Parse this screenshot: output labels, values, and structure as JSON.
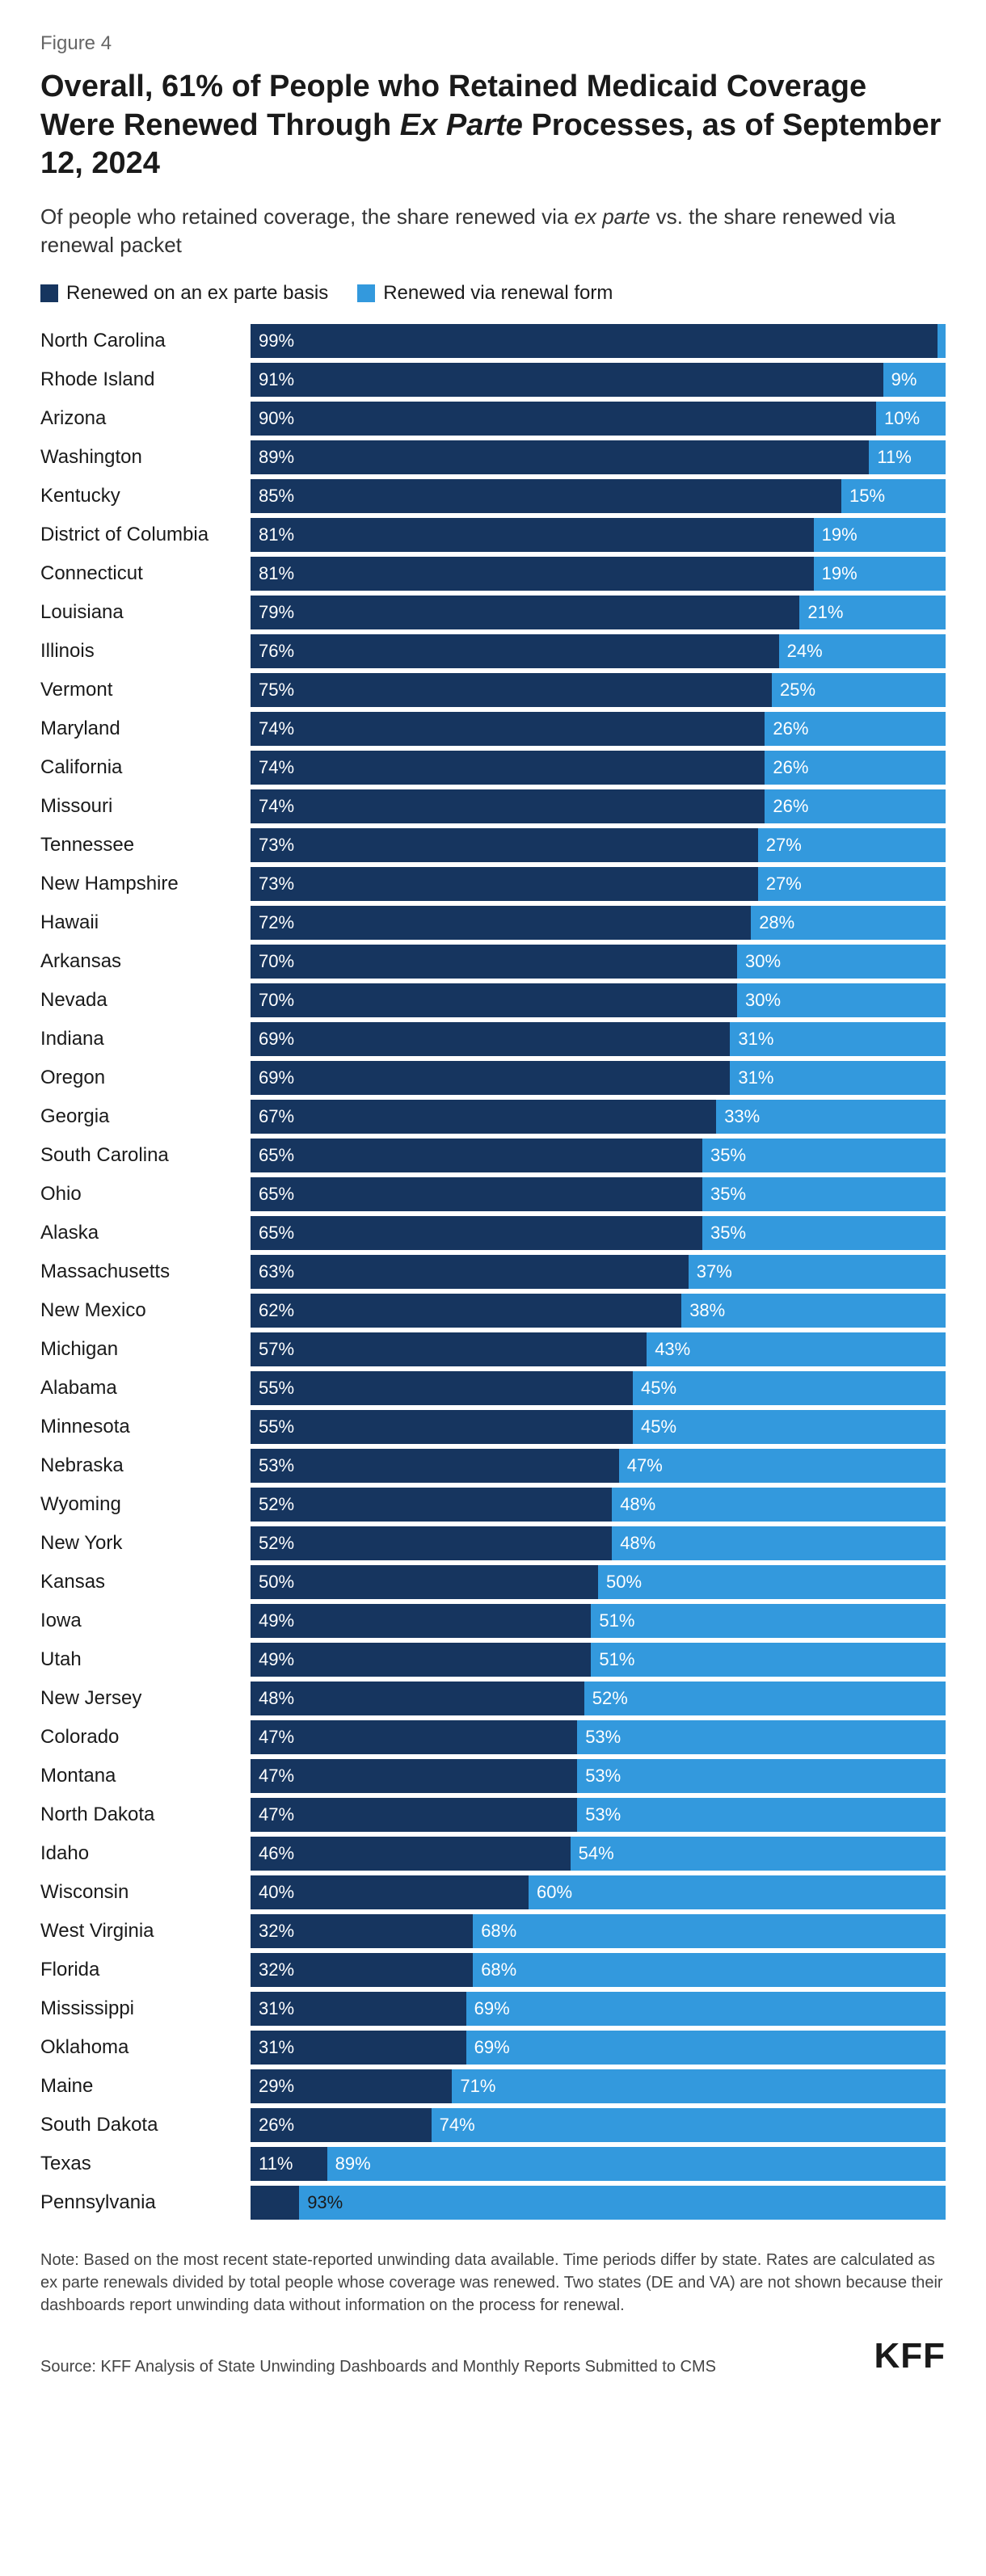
{
  "figure_label": "Figure 4",
  "title_pre": "Overall, 61% of People who Retained Medicaid Coverage Were Renewed Through ",
  "title_em": "Ex Parte",
  "title_post": " Processes, as of September 12, 2024",
  "subtitle_pre": "Of people who retained coverage, the share renewed via ",
  "subtitle_em": "ex parte",
  "subtitle_post": " vs. the share renewed via renewal packet",
  "legend": {
    "series1": {
      "label": "Renewed on an ex parte basis",
      "color": "#16355f"
    },
    "series2": {
      "label": "Renewed via renewal form",
      "color": "#3399dd"
    }
  },
  "chart": {
    "type": "stacked-bar-horizontal",
    "colors": {
      "s1": "#16355f",
      "s2": "#3399dd"
    },
    "text_color": "#ffffff",
    "rows": [
      {
        "state": "North Carolina",
        "s1": 99,
        "s2": 1,
        "l1": "99%",
        "l2": ""
      },
      {
        "state": "Rhode Island",
        "s1": 91,
        "s2": 9,
        "l1": "91%",
        "l2": "9%"
      },
      {
        "state": "Arizona",
        "s1": 90,
        "s2": 10,
        "l1": "90%",
        "l2": "10%"
      },
      {
        "state": "Washington",
        "s1": 89,
        "s2": 11,
        "l1": "89%",
        "l2": "11%"
      },
      {
        "state": "Kentucky",
        "s1": 85,
        "s2": 15,
        "l1": "85%",
        "l2": "15%"
      },
      {
        "state": "District of Columbia",
        "s1": 81,
        "s2": 19,
        "l1": "81%",
        "l2": "19%"
      },
      {
        "state": "Connecticut",
        "s1": 81,
        "s2": 19,
        "l1": "81%",
        "l2": "19%"
      },
      {
        "state": "Louisiana",
        "s1": 79,
        "s2": 21,
        "l1": "79%",
        "l2": "21%"
      },
      {
        "state": "Illinois",
        "s1": 76,
        "s2": 24,
        "l1": "76%",
        "l2": "24%"
      },
      {
        "state": "Vermont",
        "s1": 75,
        "s2": 25,
        "l1": "75%",
        "l2": "25%"
      },
      {
        "state": "Maryland",
        "s1": 74,
        "s2": 26,
        "l1": "74%",
        "l2": "26%"
      },
      {
        "state": "California",
        "s1": 74,
        "s2": 26,
        "l1": "74%",
        "l2": "26%"
      },
      {
        "state": "Missouri",
        "s1": 74,
        "s2": 26,
        "l1": "74%",
        "l2": "26%"
      },
      {
        "state": "Tennessee",
        "s1": 73,
        "s2": 27,
        "l1": "73%",
        "l2": "27%"
      },
      {
        "state": "New Hampshire",
        "s1": 73,
        "s2": 27,
        "l1": "73%",
        "l2": "27%"
      },
      {
        "state": "Hawaii",
        "s1": 72,
        "s2": 28,
        "l1": "72%",
        "l2": "28%"
      },
      {
        "state": "Arkansas",
        "s1": 70,
        "s2": 30,
        "l1": "70%",
        "l2": "30%"
      },
      {
        "state": "Nevada",
        "s1": 70,
        "s2": 30,
        "l1": "70%",
        "l2": "30%"
      },
      {
        "state": "Indiana",
        "s1": 69,
        "s2": 31,
        "l1": "69%",
        "l2": "31%"
      },
      {
        "state": "Oregon",
        "s1": 69,
        "s2": 31,
        "l1": "69%",
        "l2": "31%"
      },
      {
        "state": "Georgia",
        "s1": 67,
        "s2": 33,
        "l1": "67%",
        "l2": "33%"
      },
      {
        "state": "South Carolina",
        "s1": 65,
        "s2": 35,
        "l1": "65%",
        "l2": "35%"
      },
      {
        "state": "Ohio",
        "s1": 65,
        "s2": 35,
        "l1": "65%",
        "l2": "35%"
      },
      {
        "state": "Alaska",
        "s1": 65,
        "s2": 35,
        "l1": "65%",
        "l2": "35%"
      },
      {
        "state": "Massachusetts",
        "s1": 63,
        "s2": 37,
        "l1": "63%",
        "l2": "37%"
      },
      {
        "state": "New Mexico",
        "s1": 62,
        "s2": 38,
        "l1": "62%",
        "l2": "38%"
      },
      {
        "state": "Michigan",
        "s1": 57,
        "s2": 43,
        "l1": "57%",
        "l2": "43%"
      },
      {
        "state": "Alabama",
        "s1": 55,
        "s2": 45,
        "l1": "55%",
        "l2": "45%"
      },
      {
        "state": "Minnesota",
        "s1": 55,
        "s2": 45,
        "l1": "55%",
        "l2": "45%"
      },
      {
        "state": "Nebraska",
        "s1": 53,
        "s2": 47,
        "l1": "53%",
        "l2": "47%"
      },
      {
        "state": "Wyoming",
        "s1": 52,
        "s2": 48,
        "l1": "52%",
        "l2": "48%"
      },
      {
        "state": "New York",
        "s1": 52,
        "s2": 48,
        "l1": "52%",
        "l2": "48%"
      },
      {
        "state": "Kansas",
        "s1": 50,
        "s2": 50,
        "l1": "50%",
        "l2": "50%"
      },
      {
        "state": "Iowa",
        "s1": 49,
        "s2": 51,
        "l1": "49%",
        "l2": "51%"
      },
      {
        "state": "Utah",
        "s1": 49,
        "s2": 51,
        "l1": "49%",
        "l2": "51%"
      },
      {
        "state": "New Jersey",
        "s1": 48,
        "s2": 52,
        "l1": "48%",
        "l2": "52%"
      },
      {
        "state": "Colorado",
        "s1": 47,
        "s2": 53,
        "l1": "47%",
        "l2": "53%"
      },
      {
        "state": "Montana",
        "s1": 47,
        "s2": 53,
        "l1": "47%",
        "l2": "53%"
      },
      {
        "state": "North Dakota",
        "s1": 47,
        "s2": 53,
        "l1": "47%",
        "l2": "53%"
      },
      {
        "state": "Idaho",
        "s1": 46,
        "s2": 54,
        "l1": "46%",
        "l2": "54%"
      },
      {
        "state": "Wisconsin",
        "s1": 40,
        "s2": 60,
        "l1": "40%",
        "l2": "60%"
      },
      {
        "state": "West Virginia",
        "s1": 32,
        "s2": 68,
        "l1": "32%",
        "l2": "68%"
      },
      {
        "state": "Florida",
        "s1": 32,
        "s2": 68,
        "l1": "32%",
        "l2": "68%"
      },
      {
        "state": "Mississippi",
        "s1": 31,
        "s2": 69,
        "l1": "31%",
        "l2": "69%"
      },
      {
        "state": "Oklahoma",
        "s1": 31,
        "s2": 69,
        "l1": "31%",
        "l2": "69%"
      },
      {
        "state": "Maine",
        "s1": 29,
        "s2": 71,
        "l1": "29%",
        "l2": "71%"
      },
      {
        "state": "South Dakota",
        "s1": 26,
        "s2": 74,
        "l1": "26%",
        "l2": "74%"
      },
      {
        "state": "Texas",
        "s1": 11,
        "s2": 89,
        "l1": "11%",
        "l2": "89%"
      },
      {
        "state": "Pennsylvania",
        "s1": 7,
        "s2": 93,
        "l1": "",
        "l2": "93%",
        "overflow": true
      }
    ]
  },
  "note": "Note: Based on the most recent state-reported unwinding data available. Time periods differ by state. Rates are calculated as ex parte renewals divided by total people whose coverage was renewed. Two states (DE and VA) are not shown because their dashboards report unwinding data without information on the process for renewal.",
  "source": "Source: KFF Analysis of State Unwinding Dashboards and Monthly Reports Submitted to CMS",
  "logo": "KFF"
}
